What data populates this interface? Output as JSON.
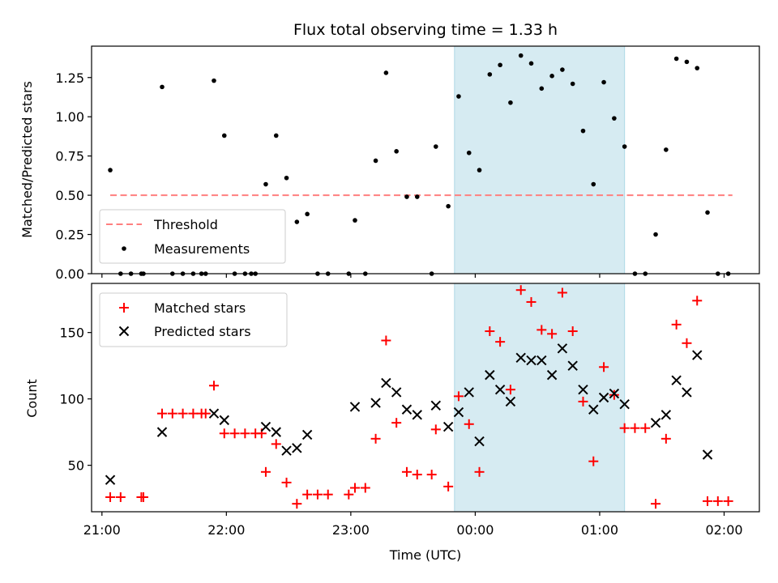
{
  "chart_data": [
    {
      "type": "scatter",
      "title": "Flux total observing time = 1.33 h",
      "xlabel": "",
      "ylabel": "Matched/Predicted stars",
      "xlim": [
        "20:55",
        "02:17"
      ],
      "ylim": [
        0,
        1.45
      ],
      "yticks": [
        "0.00",
        "0.25",
        "0.50",
        "0.75",
        "1.00",
        "1.25"
      ],
      "highlight_span": [
        "23:50",
        "01:12"
      ],
      "legend_location": "lower-left",
      "threshold": {
        "name": "Threshold",
        "y": 0.5,
        "x_start": "21:04",
        "x_end": "02:04",
        "color": "#ff7f7f"
      },
      "series": [
        {
          "name": "Measurements",
          "color": "#000000",
          "points": [
            [
              "21:04",
              0.66
            ],
            [
              "21:09",
              0.0
            ],
            [
              "21:14",
              0.0
            ],
            [
              "21:19",
              0.0
            ],
            [
              "21:20",
              0.0
            ],
            [
              "21:29",
              1.19
            ],
            [
              "21:34",
              0.0
            ],
            [
              "21:39",
              0.0
            ],
            [
              "21:44",
              0.0
            ],
            [
              "21:48",
              0.0
            ],
            [
              "21:50",
              0.0
            ],
            [
              "21:54",
              1.23
            ],
            [
              "21:59",
              0.88
            ],
            [
              "22:04",
              0.0
            ],
            [
              "22:09",
              0.0
            ],
            [
              "22:12",
              0.0
            ],
            [
              "22:14",
              0.0
            ],
            [
              "22:19",
              0.57
            ],
            [
              "22:24",
              0.88
            ],
            [
              "22:29",
              0.61
            ],
            [
              "22:34",
              0.33
            ],
            [
              "22:39",
              0.38
            ],
            [
              "22:44",
              0.0
            ],
            [
              "22:49",
              0.0
            ],
            [
              "22:59",
              0.0
            ],
            [
              "23:02",
              0.34
            ],
            [
              "23:07",
              0.0
            ],
            [
              "23:12",
              0.72
            ],
            [
              "23:17",
              1.28
            ],
            [
              "23:22",
              0.78
            ],
            [
              "23:27",
              0.49
            ],
            [
              "23:32",
              0.49
            ],
            [
              "23:39",
              0.0
            ],
            [
              "23:41",
              0.81
            ],
            [
              "23:47",
              0.43
            ],
            [
              "23:52",
              1.13
            ],
            [
              "23:57",
              0.77
            ],
            [
              "00:02",
              0.66
            ],
            [
              "00:07",
              1.27
            ],
            [
              "00:12",
              1.33
            ],
            [
              "00:17",
              1.09
            ],
            [
              "00:22",
              1.39
            ],
            [
              "00:27",
              1.34
            ],
            [
              "00:32",
              1.18
            ],
            [
              "00:37",
              1.26
            ],
            [
              "00:42",
              1.3
            ],
            [
              "00:47",
              1.21
            ],
            [
              "00:52",
              0.91
            ],
            [
              "00:57",
              0.57
            ],
            [
              "01:02",
              1.22
            ],
            [
              "01:07",
              0.99
            ],
            [
              "01:12",
              0.81
            ],
            [
              "01:17",
              0.0
            ],
            [
              "01:22",
              0.0
            ],
            [
              "01:27",
              0.25
            ],
            [
              "01:32",
              0.79
            ],
            [
              "01:37",
              1.37
            ],
            [
              "01:42",
              1.35
            ],
            [
              "01:47",
              1.31
            ],
            [
              "01:52",
              0.39
            ],
            [
              "01:57",
              0.0
            ],
            [
              "02:02",
              0.0
            ]
          ]
        }
      ]
    },
    {
      "type": "scatter",
      "title": "",
      "xlabel": "Time (UTC)",
      "ylabel": "Count",
      "xlim": [
        "20:55",
        "02:17"
      ],
      "ylim": [
        15,
        187
      ],
      "yticks": [
        "50",
        "100",
        "150"
      ],
      "xticks": [
        "21:00",
        "22:00",
        "23:00",
        "00:00",
        "01:00",
        "02:00"
      ],
      "highlight_span": [
        "23:50",
        "01:12"
      ],
      "legend_location": "upper-left",
      "series": [
        {
          "name": "Matched stars",
          "color": "#ff0000",
          "marker": "plus",
          "points": [
            [
              "21:04",
              26
            ],
            [
              "21:09",
              26
            ],
            [
              "21:19",
              26
            ],
            [
              "21:20",
              26
            ],
            [
              "21:29",
              89
            ],
            [
              "21:34",
              89
            ],
            [
              "21:39",
              89
            ],
            [
              "21:44",
              89
            ],
            [
              "21:48",
              89
            ],
            [
              "21:50",
              89
            ],
            [
              "21:54",
              110
            ],
            [
              "21:59",
              74
            ],
            [
              "22:04",
              74
            ],
            [
              "22:09",
              74
            ],
            [
              "22:14",
              74
            ],
            [
              "22:17",
              74
            ],
            [
              "22:19",
              45
            ],
            [
              "22:24",
              66
            ],
            [
              "22:29",
              37
            ],
            [
              "22:34",
              21
            ],
            [
              "22:39",
              28
            ],
            [
              "22:44",
              28
            ],
            [
              "22:49",
              28
            ],
            [
              "22:59",
              28
            ],
            [
              "23:02",
              33
            ],
            [
              "23:07",
              33
            ],
            [
              "23:12",
              70
            ],
            [
              "23:17",
              144
            ],
            [
              "23:22",
              82
            ],
            [
              "23:27",
              45
            ],
            [
              "23:32",
              43
            ],
            [
              "23:39",
              43
            ],
            [
              "23:41",
              77
            ],
            [
              "23:47",
              34
            ],
            [
              "23:52",
              102
            ],
            [
              "23:57",
              81
            ],
            [
              "00:02",
              45
            ],
            [
              "00:07",
              151
            ],
            [
              "00:12",
              143
            ],
            [
              "00:17",
              107
            ],
            [
              "00:22",
              182
            ],
            [
              "00:27",
              173
            ],
            [
              "00:32",
              152
            ],
            [
              "00:37",
              149
            ],
            [
              "00:42",
              180
            ],
            [
              "00:47",
              151
            ],
            [
              "00:52",
              98
            ],
            [
              "00:57",
              53
            ],
            [
              "01:02",
              124
            ],
            [
              "01:07",
              103
            ],
            [
              "01:12",
              78
            ],
            [
              "01:17",
              78
            ],
            [
              "01:22",
              78
            ],
            [
              "01:27",
              21
            ],
            [
              "01:32",
              70
            ],
            [
              "01:37",
              156
            ],
            [
              "01:42",
              142
            ],
            [
              "01:47",
              174
            ],
            [
              "01:52",
              23
            ],
            [
              "01:57",
              23
            ],
            [
              "02:02",
              23
            ]
          ]
        },
        {
          "name": "Predicted stars",
          "color": "#000000",
          "marker": "x",
          "points": [
            [
              "21:04",
              39
            ],
            [
              "21:29",
              75
            ],
            [
              "21:54",
              89
            ],
            [
              "21:59",
              84
            ],
            [
              "22:19",
              79
            ],
            [
              "22:24",
              75
            ],
            [
              "22:29",
              61
            ],
            [
              "22:34",
              63
            ],
            [
              "22:39",
              73
            ],
            [
              "23:02",
              94
            ],
            [
              "23:12",
              97
            ],
            [
              "23:17",
              112
            ],
            [
              "23:22",
              105
            ],
            [
              "23:27",
              92
            ],
            [
              "23:32",
              88
            ],
            [
              "23:41",
              95
            ],
            [
              "23:47",
              79
            ],
            [
              "23:52",
              90
            ],
            [
              "23:57",
              105
            ],
            [
              "00:02",
              68
            ],
            [
              "00:07",
              118
            ],
            [
              "00:12",
              107
            ],
            [
              "00:17",
              98
            ],
            [
              "00:22",
              131
            ],
            [
              "00:27",
              129
            ],
            [
              "00:32",
              129
            ],
            [
              "00:37",
              118
            ],
            [
              "00:42",
              138
            ],
            [
              "00:47",
              125
            ],
            [
              "00:52",
              107
            ],
            [
              "00:57",
              92
            ],
            [
              "01:02",
              101
            ],
            [
              "01:07",
              104
            ],
            [
              "01:12",
              96
            ],
            [
              "01:27",
              82
            ],
            [
              "01:32",
              88
            ],
            [
              "01:37",
              114
            ],
            [
              "01:42",
              105
            ],
            [
              "01:47",
              133
            ],
            [
              "01:52",
              58
            ]
          ]
        }
      ]
    }
  ]
}
